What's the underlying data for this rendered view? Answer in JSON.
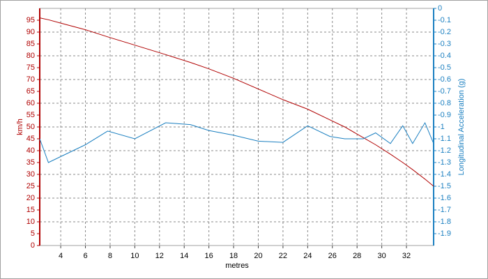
{
  "chart_data": {
    "type": "line",
    "xlabel": "metres",
    "ylabel": "km/h",
    "y2label": "Longitudinal Acceleration (g)",
    "x": [
      2.3,
      3,
      4,
      6,
      7.8,
      10,
      12.5,
      14.5,
      16,
      18,
      20,
      22,
      24,
      25.8,
      27,
      28.5,
      29.5,
      30.7,
      31.7,
      32.5,
      33.5,
      34.2
    ],
    "series": [
      {
        "name": "km/h",
        "color": "#b00000",
        "axis": "y",
        "values": [
          96,
          95.2,
          93.8,
          91,
          88,
          84.5,
          80.5,
          77.2,
          74.5,
          70.5,
          66,
          61.5,
          57.5,
          53,
          50,
          45.5,
          42.5,
          38.5,
          35,
          32,
          28,
          25
        ]
      },
      {
        "name": "Longitudinal Acceleration (g)",
        "color": "#1a7fc0",
        "axis": "y2",
        "values": [
          -1.1,
          -1.3,
          -1.25,
          -1.15,
          -1.035,
          -1.1,
          -0.965,
          -0.98,
          -1.03,
          -1.07,
          -1.12,
          -1.13,
          -0.99,
          -1.08,
          -1.1,
          -1.1,
          -1.05,
          -1.14,
          -0.99,
          -1.14,
          -0.965,
          -1.14
        ]
      }
    ],
    "xlim": [
      2.3,
      34.2
    ],
    "xticks": [
      4,
      6,
      8,
      10,
      12,
      14,
      16,
      18,
      20,
      22,
      24,
      26,
      28,
      30,
      32
    ],
    "ylim": [
      0,
      100
    ],
    "yticks": [
      0,
      5,
      10,
      15,
      20,
      25,
      30,
      35,
      40,
      45,
      50,
      55,
      60,
      65,
      70,
      75,
      80,
      85,
      90,
      95
    ],
    "y2lim": [
      -2,
      0
    ],
    "y2ticks": [
      0,
      -0.1,
      -0.2,
      -0.3,
      -0.4,
      -0.5,
      -0.6,
      -0.7,
      -0.8,
      -0.9,
      -1,
      -1.1,
      -1.2,
      -1.3,
      -1.4,
      -1.5,
      -1.6,
      -1.7,
      -1.8,
      -1.9
    ],
    "grid": true
  }
}
